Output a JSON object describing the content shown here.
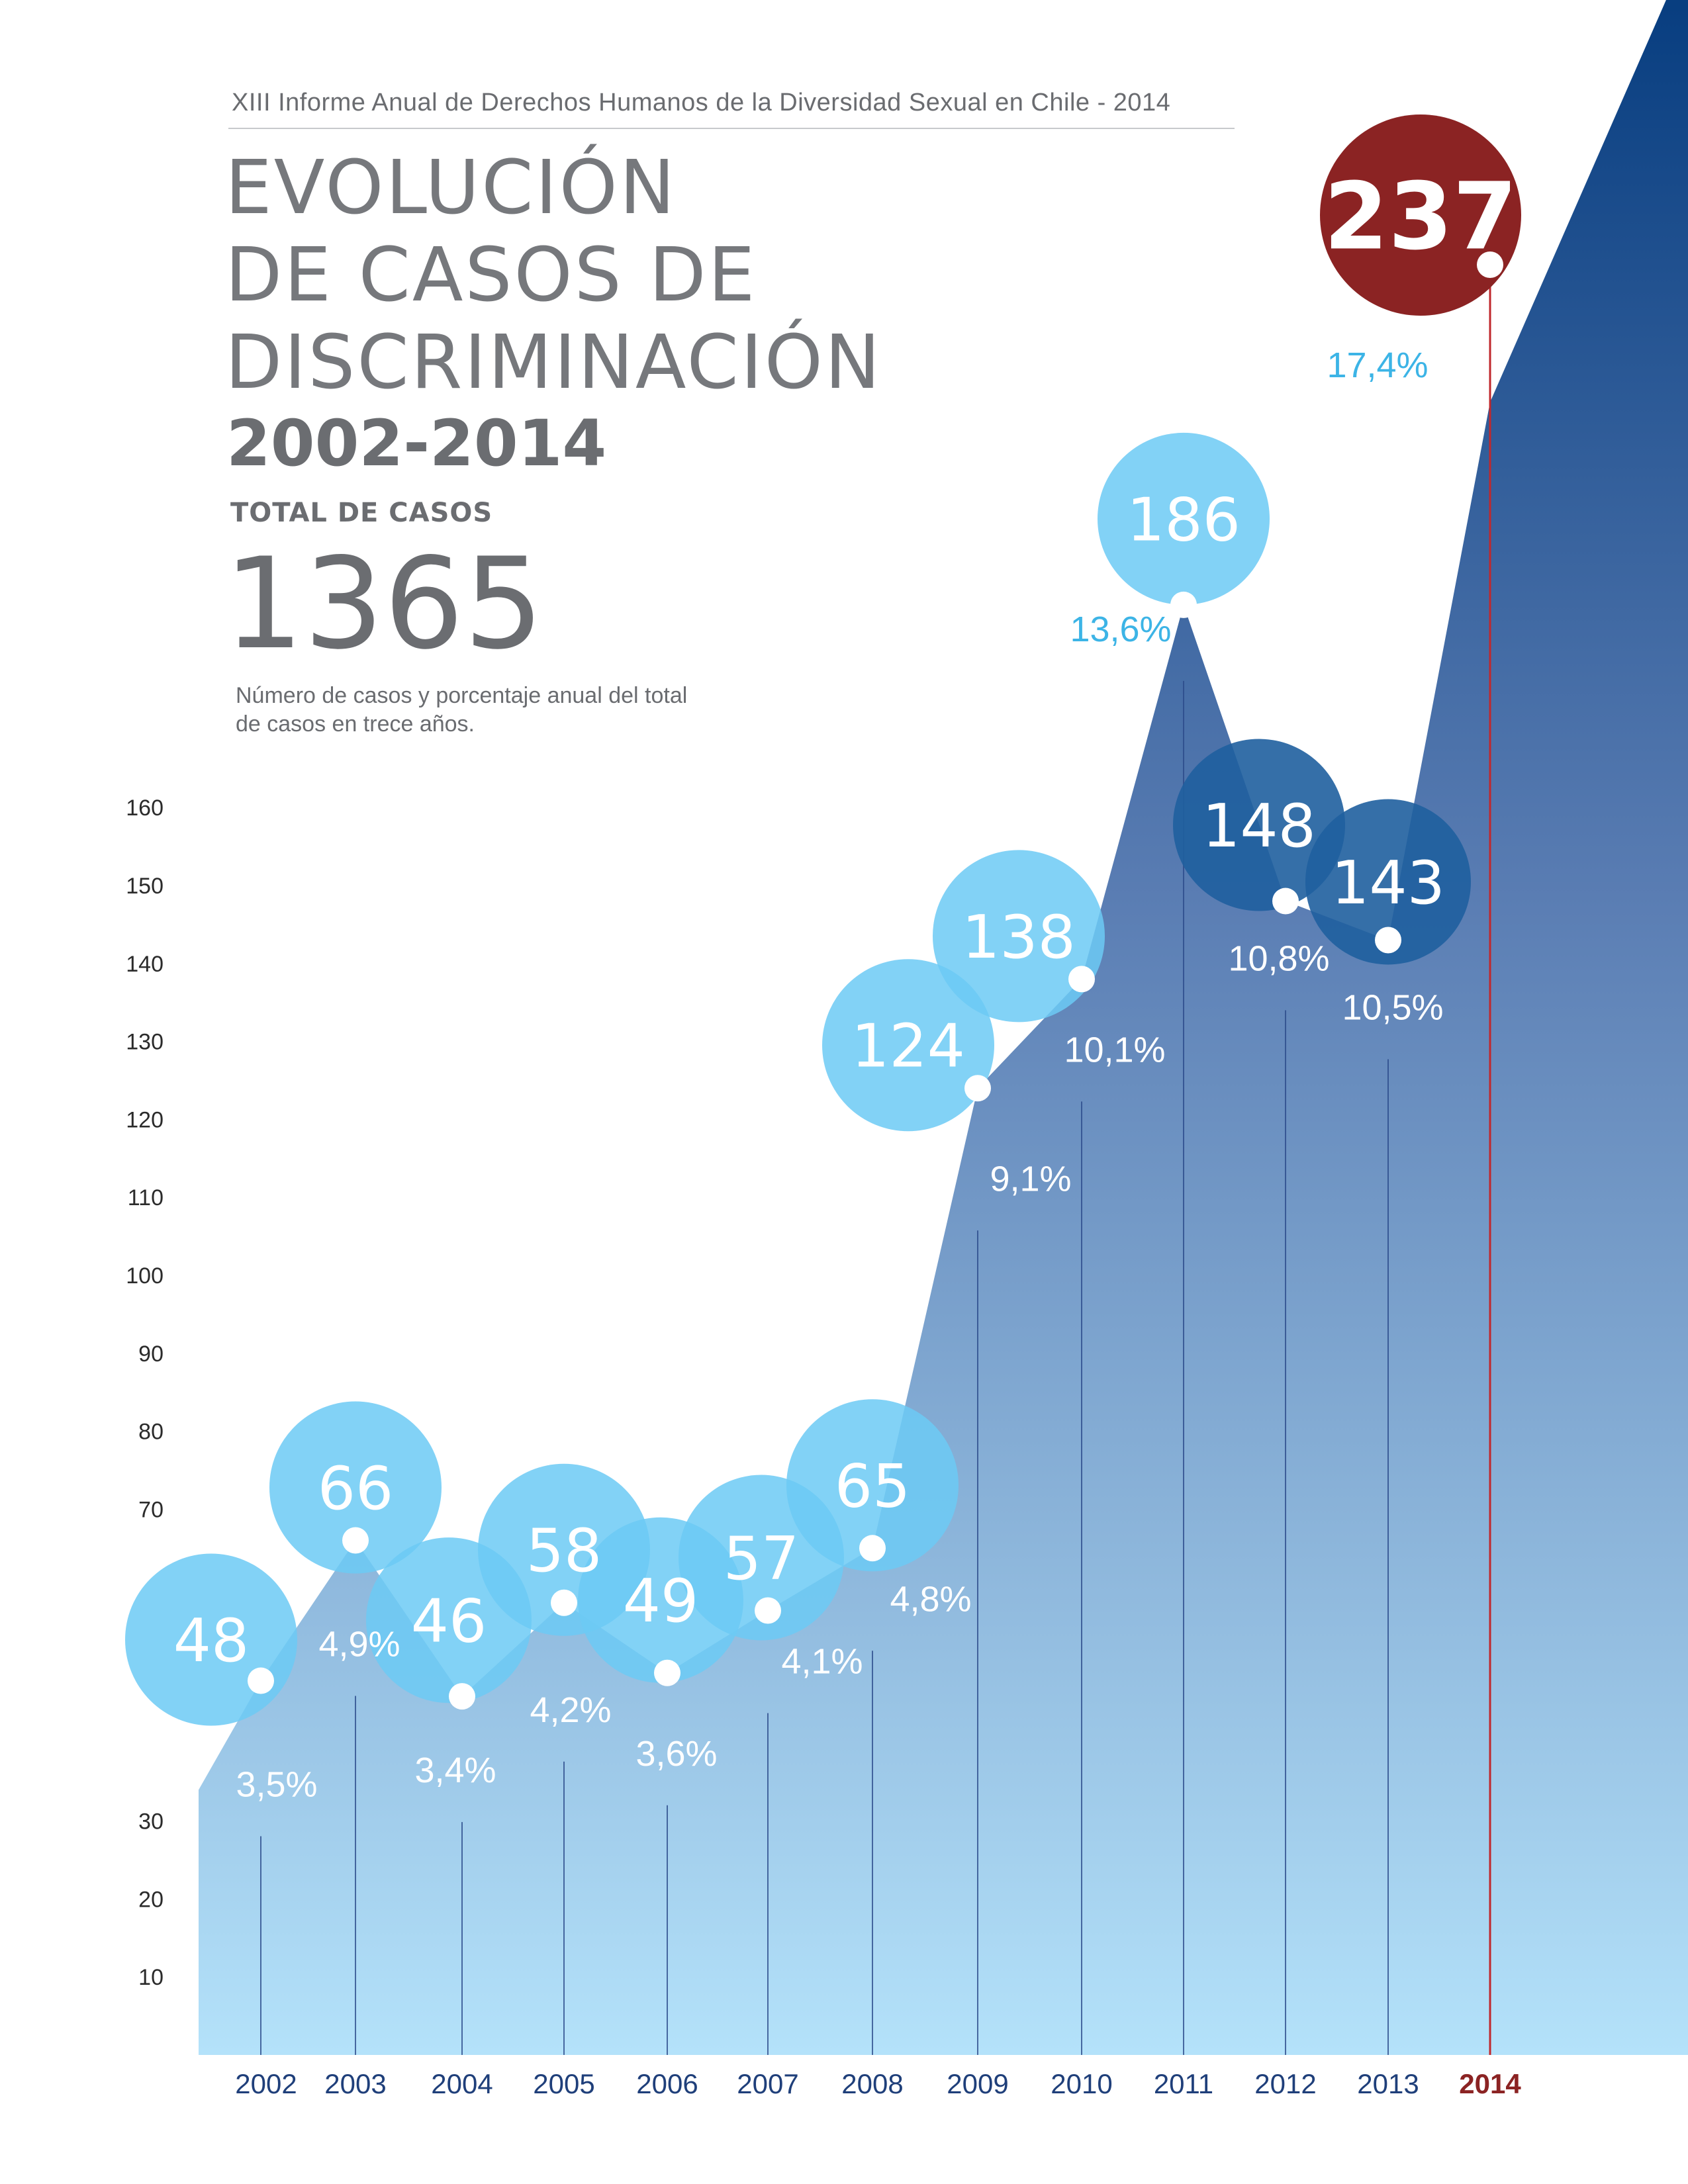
{
  "header": {
    "subtitle": "XIII Informe Anual de Derechos Humanos de la Diversidad Sexual en Chile - 2014",
    "title_line1": "EVOLUCIÓN",
    "title_line2": "DE CASOS DE",
    "title_line3": "DISCRIMINACIÓN",
    "years": "2002-2014",
    "total_label": "TOTAL DE CASOS",
    "total_value": "1365",
    "description": "Número de casos y porcentaje anual del total de casos en trece años."
  },
  "colors": {
    "bubble": "#6ccaf4",
    "bubble_dark": "#1f5f9e",
    "highlight": "#8b2323",
    "area_top": "#033a7d",
    "area_bottom": "#b4e2fa",
    "axis_text": "#1f3f7a",
    "percent_light": "#ffffff",
    "percent_accent": "#3cb4e6",
    "grid_text": "#2b2b2b"
  },
  "chart_data": {
    "type": "area",
    "title": "EVOLUCIÓN DE CASOS DE DISCRIMINACIÓN 2002-2014",
    "xlabel": "",
    "ylabel": "",
    "categories": [
      "2002",
      "2003",
      "2004",
      "2005",
      "2006",
      "2007",
      "2008",
      "2009",
      "2010",
      "2011",
      "2012",
      "2013",
      "2014"
    ],
    "values": [
      48,
      66,
      46,
      58,
      49,
      57,
      65,
      124,
      138,
      186,
      148,
      143,
      237
    ],
    "value_labels": [
      "48",
      "66",
      "46",
      "58",
      "49",
      "57",
      "65",
      "124",
      "138",
      "186",
      "148",
      "143",
      "237"
    ],
    "percent_labels": [
      "3,5%",
      "4,9%",
      "3,4%",
      "4,2%",
      "3,6%",
      "4,1%",
      "4,8%",
      "9,1%",
      "10,1%",
      "13,6%",
      "10,8%",
      "10,5%",
      "17,4%"
    ],
    "highlight_category": "2014",
    "yticks": [
      10,
      20,
      30,
      70,
      80,
      90,
      100,
      110,
      120,
      130,
      140,
      150,
      160
    ],
    "ylim": [
      0,
      160
    ],
    "grid": false,
    "legend": "none"
  }
}
